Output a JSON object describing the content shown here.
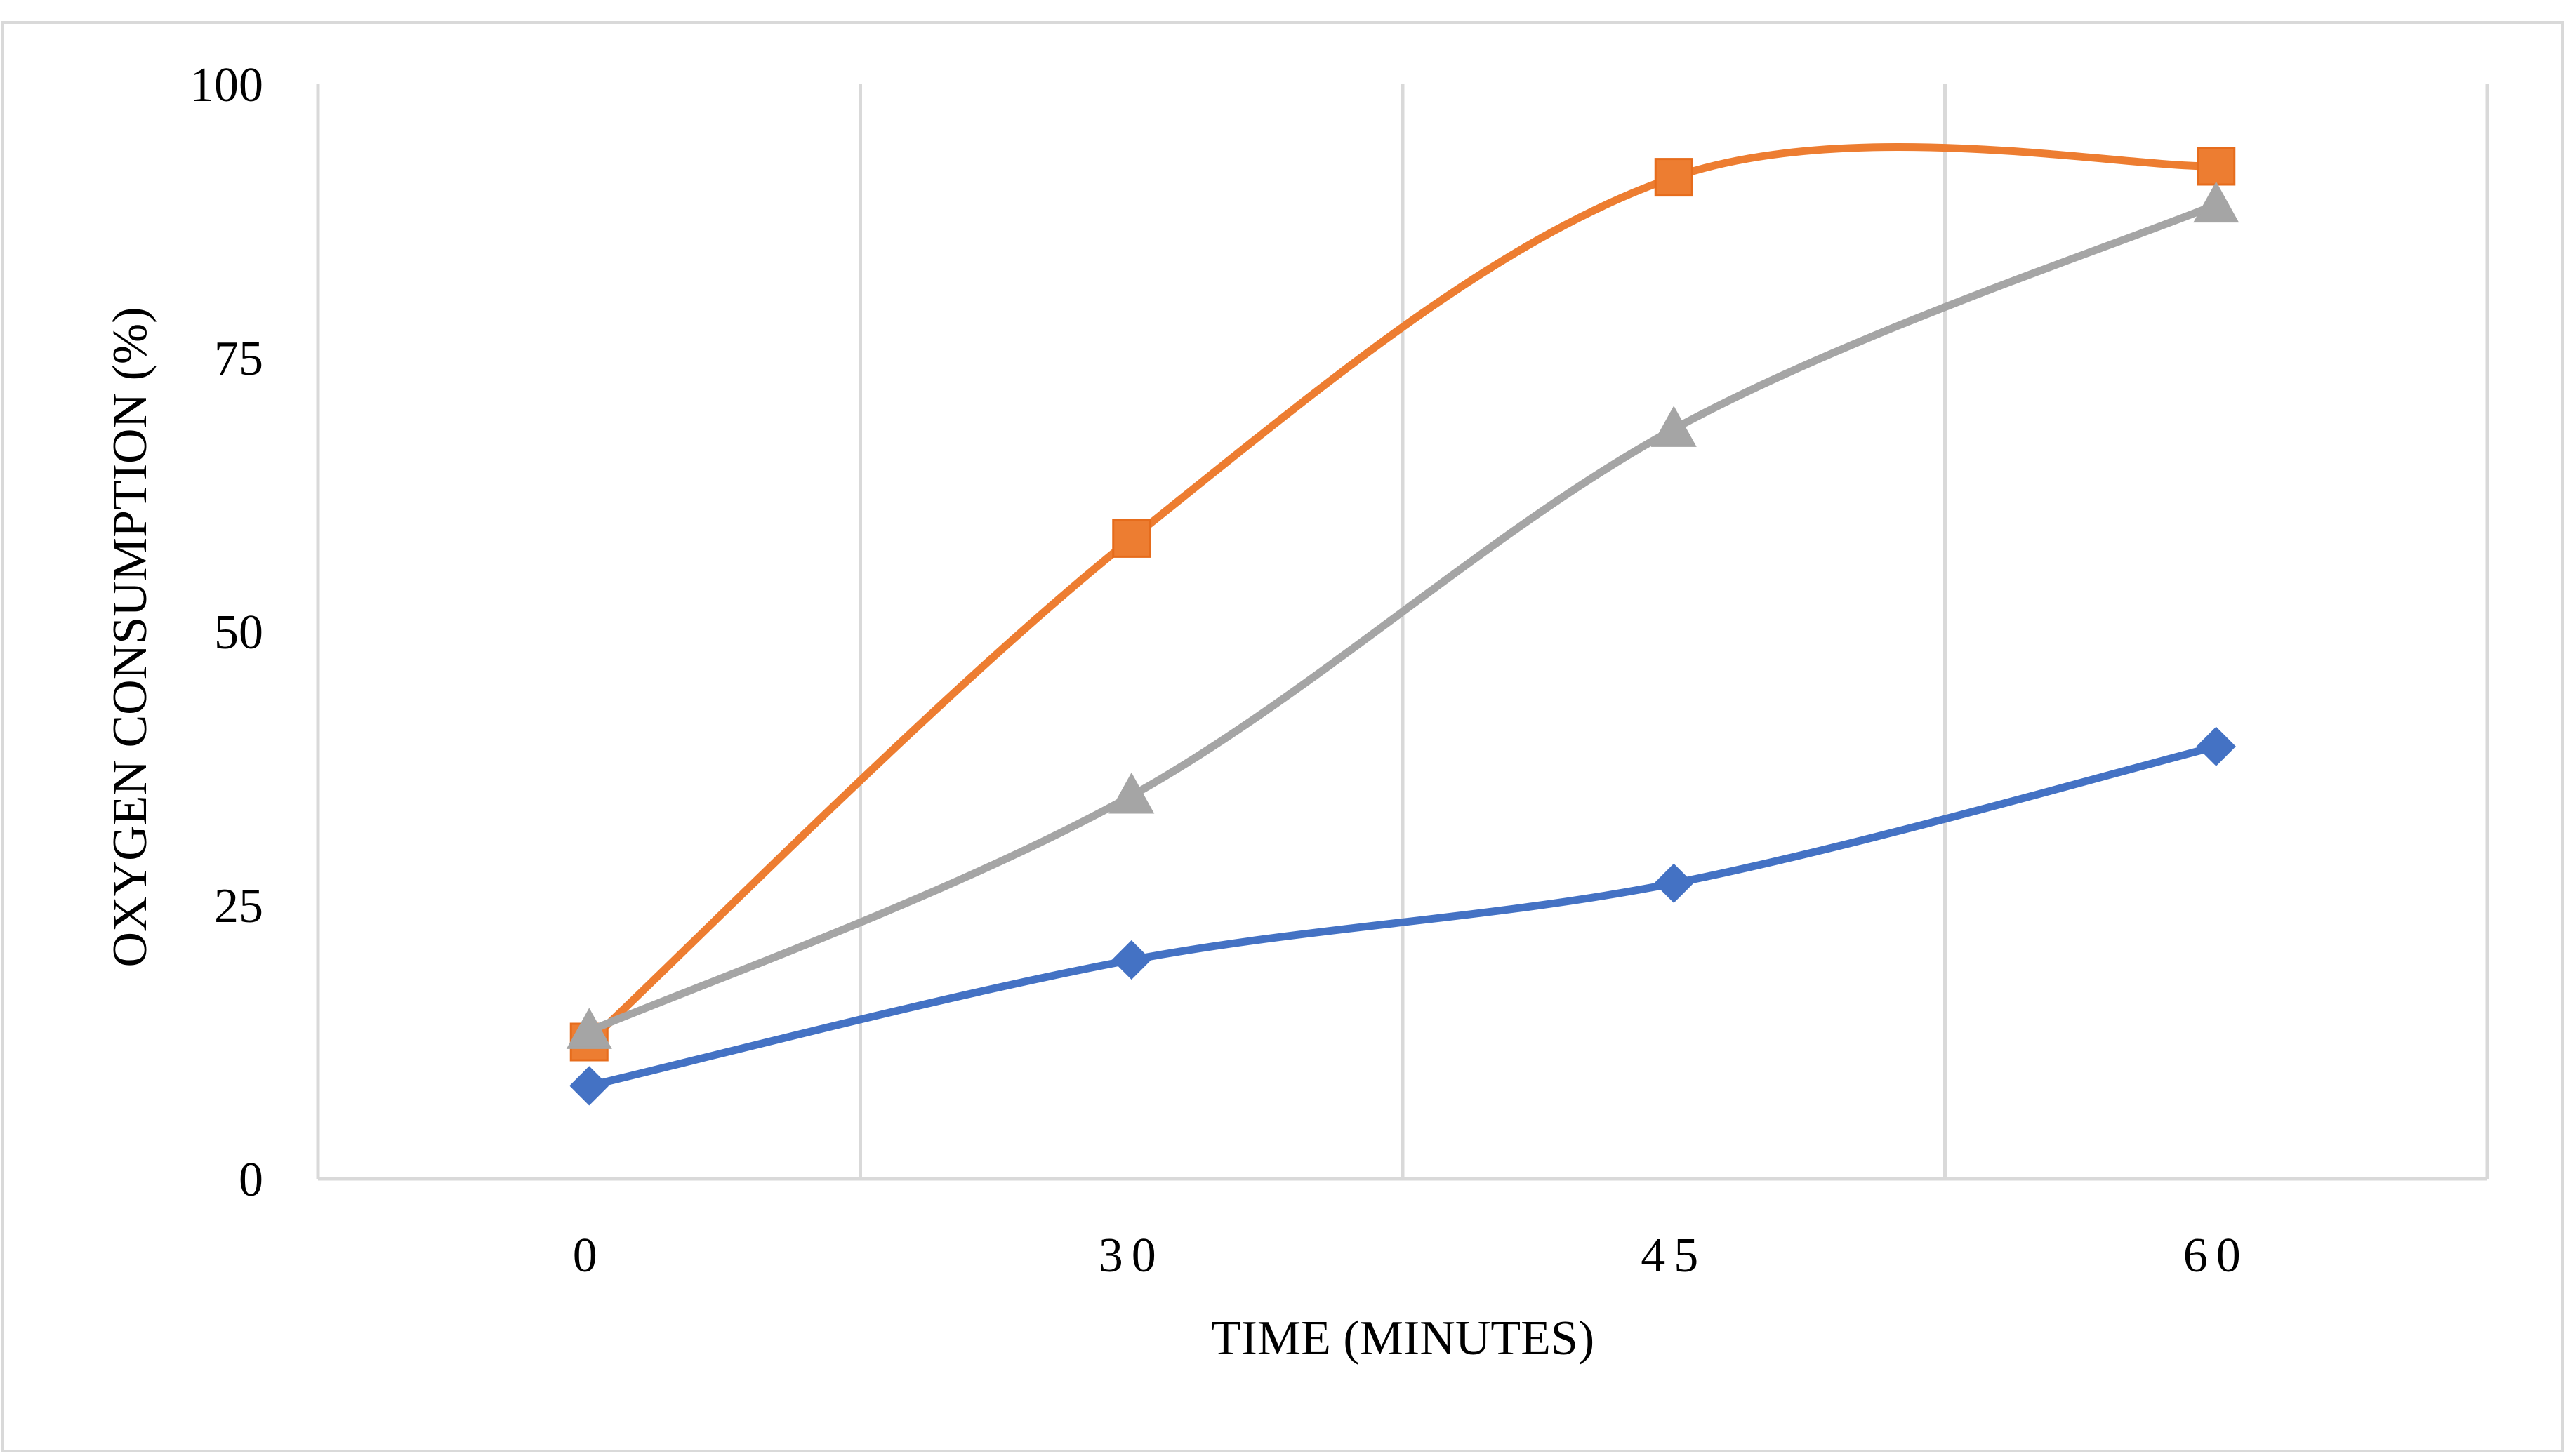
{
  "chart_data": {
    "type": "line",
    "title": "",
    "xlabel": "TIME (MINUTES)",
    "ylabel": "OXYGEN CONSUMPTION (%)",
    "categories": [
      "0",
      "30",
      "45",
      "60"
    ],
    "ylim": [
      0,
      100
    ],
    "yticks": [
      "0",
      "25",
      "50",
      "75",
      "100"
    ],
    "grid": "vertical",
    "legend": "none",
    "smooth": true,
    "series": [
      {
        "color": "#4472c4",
        "marker": "diamond",
        "values": [
          8.5,
          20,
          27,
          39.5
        ]
      },
      {
        "color": "#ed7d31",
        "marker": "square",
        "values": [
          12.5,
          58.5,
          91.5,
          92.5
        ]
      },
      {
        "color": "#a5a5a5",
        "marker": "triangle",
        "values": [
          13.5,
          35,
          68.5,
          89
        ]
      }
    ]
  }
}
